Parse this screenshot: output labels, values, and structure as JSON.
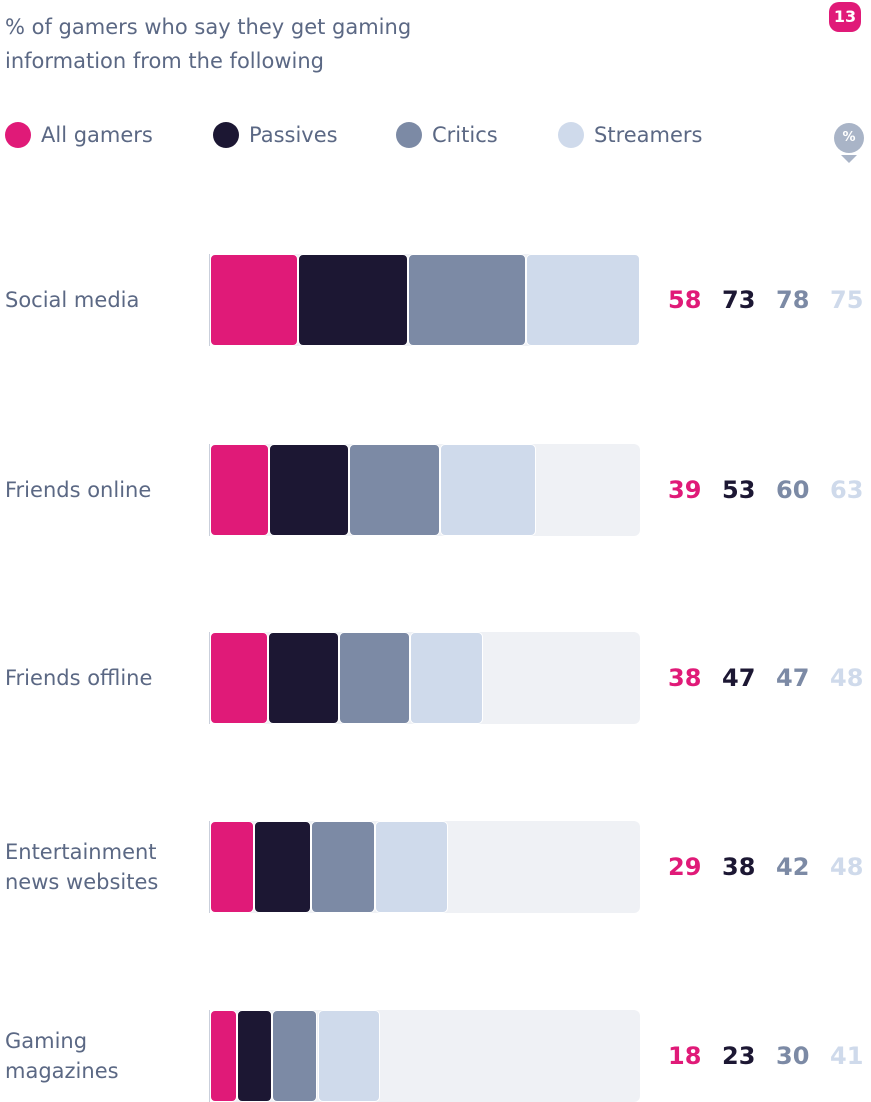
{
  "page_number": "13",
  "unit_icon": "%",
  "chart_data": {
    "type": "stacked-bar",
    "orientation": "horizontal",
    "title": "% of gamers who say they get gaming\ninformation from the following",
    "categories": [
      "Social media",
      "Friends online",
      "Friends offline",
      "Entertainment\nnews websites",
      "Gaming\nmagazines"
    ],
    "series": [
      {
        "name": "All gamers",
        "color": "#e01a78",
        "values": [
          58,
          39,
          38,
          29,
          18
        ]
      },
      {
        "name": "Passives",
        "color": "#1c1733",
        "values": [
          73,
          53,
          47,
          38,
          23
        ]
      },
      {
        "name": "Critics",
        "color": "#7c8aa5",
        "values": [
          78,
          60,
          47,
          42,
          30
        ]
      },
      {
        "name": "Streamers",
        "color": "#cfdaeb",
        "values": [
          75,
          63,
          48,
          48,
          41
        ]
      }
    ],
    "xlim": [
      0,
      284
    ],
    "track_color": "#eff1f5"
  }
}
